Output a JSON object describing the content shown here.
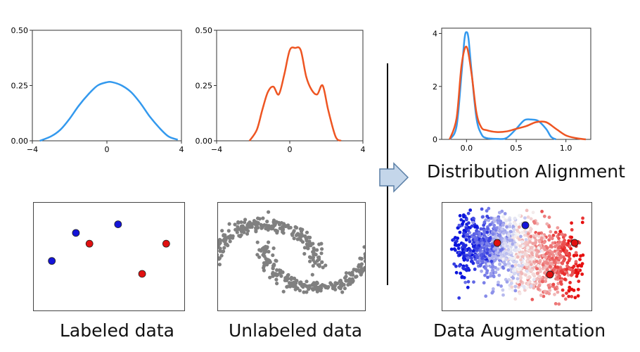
{
  "figure": {
    "captions": {
      "labeled": "Labeled data",
      "unlabeled": "Unlabeled data",
      "augmentation": "Data Augmentation",
      "alignment": "Distribution Alignment"
    },
    "colors": {
      "blue_curve": "#3399ee",
      "orange_curve": "#ee5522",
      "blue_point": "#1414d8",
      "red_point": "#e01010",
      "grey_point": "#808080",
      "arrow_fill": "#c4d6ea",
      "arrow_stroke": "#5a7fa6"
    }
  },
  "chart_data": [
    {
      "type": "line",
      "name": "labeled-density",
      "xlim": [
        -4,
        4
      ],
      "ylim": [
        0,
        0.5
      ],
      "xticks": [
        "−4",
        "0",
        "4"
      ],
      "yticks": [
        "0.00",
        "0.25",
        "0.50"
      ],
      "series": [
        {
          "name": "labeled",
          "color": "#3399ee",
          "x": [
            -3.6,
            -3.0,
            -2.5,
            -2.0,
            -1.5,
            -1.0,
            -0.5,
            0.0,
            0.3,
            0.8,
            1.3,
            1.8,
            2.3,
            2.8,
            3.3,
            3.8
          ],
          "y": [
            0.0,
            0.02,
            0.05,
            0.1,
            0.16,
            0.21,
            0.25,
            0.265,
            0.265,
            0.25,
            0.22,
            0.17,
            0.11,
            0.06,
            0.02,
            0.005
          ]
        }
      ]
    },
    {
      "type": "line",
      "name": "unlabeled-density",
      "xlim": [
        -4,
        4
      ],
      "ylim": [
        0,
        0.5
      ],
      "xticks": [
        "−4",
        "0",
        "4"
      ],
      "yticks": [
        "0.00",
        "0.25",
        "0.50"
      ],
      "series": [
        {
          "name": "unlabeled",
          "color": "#ee5522",
          "x": [
            -2.2,
            -1.8,
            -1.5,
            -1.2,
            -0.9,
            -0.6,
            -0.3,
            0.0,
            0.3,
            0.6,
            0.9,
            1.2,
            1.5,
            1.8,
            2.1,
            2.5,
            2.8
          ],
          "y": [
            0.0,
            0.05,
            0.14,
            0.22,
            0.245,
            0.21,
            0.3,
            0.41,
            0.42,
            0.41,
            0.29,
            0.23,
            0.21,
            0.25,
            0.14,
            0.02,
            0.0
          ]
        }
      ]
    },
    {
      "type": "line",
      "name": "alignment-density",
      "xlim": [
        -0.25,
        1.25
      ],
      "ylim": [
        0,
        4.2
      ],
      "xticks": [
        "0.0",
        "0.5",
        "1.0"
      ],
      "yticks": [
        "0",
        "2",
        "4"
      ],
      "series": [
        {
          "name": "labeled",
          "color": "#3399ee",
          "x": [
            -0.17,
            -0.1,
            -0.05,
            -0.02,
            0.0,
            0.02,
            0.05,
            0.1,
            0.15,
            0.2,
            0.3,
            0.4,
            0.5,
            0.58,
            0.65,
            0.72,
            0.8,
            0.85,
            0.9
          ],
          "y": [
            0.0,
            0.5,
            2.5,
            3.8,
            4.05,
            3.8,
            2.6,
            0.8,
            0.2,
            0.05,
            0.02,
            0.05,
            0.4,
            0.72,
            0.75,
            0.7,
            0.4,
            0.1,
            0.0
          ]
        },
        {
          "name": "unlabeled",
          "color": "#ee5522",
          "x": [
            -0.17,
            -0.1,
            -0.05,
            0.0,
            0.05,
            0.1,
            0.15,
            0.2,
            0.3,
            0.4,
            0.5,
            0.6,
            0.7,
            0.8,
            0.9,
            1.0,
            1.1,
            1.2
          ],
          "y": [
            0.0,
            0.8,
            2.8,
            3.5,
            2.5,
            1.0,
            0.45,
            0.35,
            0.28,
            0.3,
            0.4,
            0.5,
            0.65,
            0.65,
            0.4,
            0.15,
            0.05,
            0.0
          ]
        }
      ]
    },
    {
      "type": "scatter",
      "name": "labeled-scatter",
      "xlim": [
        0,
        1
      ],
      "ylim": [
        0,
        1
      ],
      "points": [
        {
          "x": 0.28,
          "y": 0.72,
          "class": "blue"
        },
        {
          "x": 0.56,
          "y": 0.8,
          "class": "blue"
        },
        {
          "x": 0.12,
          "y": 0.46,
          "class": "blue"
        },
        {
          "x": 0.37,
          "y": 0.62,
          "class": "red"
        },
        {
          "x": 0.88,
          "y": 0.62,
          "class": "red"
        },
        {
          "x": 0.72,
          "y": 0.34,
          "class": "red"
        }
      ]
    }
  ]
}
